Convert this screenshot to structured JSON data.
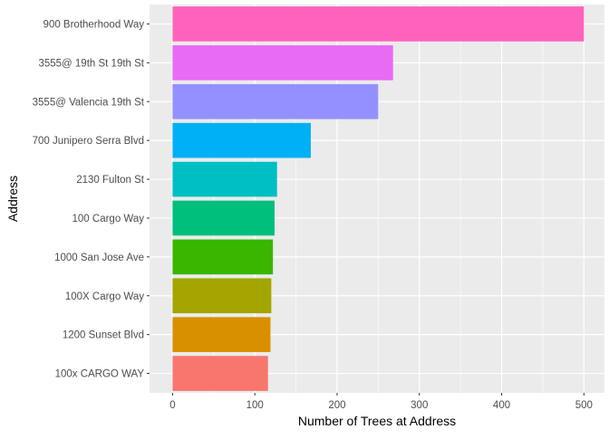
{
  "chart_data": {
    "type": "bar",
    "orientation": "horizontal",
    "title": "",
    "xlabel": "Number of Trees at Address",
    "ylabel": "Address",
    "categories": [
      "100x CARGO WAY",
      "1200 Sunset Blvd",
      "100X Cargo Way",
      "1000 San Jose Ave",
      "100 Cargo Way",
      "2130 Fulton St",
      "700 Junipero Serra Blvd",
      "3555@ Valencia 19th St",
      "3555@ 19th St 19th St",
      "900 Brotherhood Way"
    ],
    "values": [
      116,
      119,
      120,
      122,
      124,
      127,
      168,
      250,
      268,
      500
    ],
    "colors": [
      "#F8766D",
      "#D89000",
      "#A3A500",
      "#39B600",
      "#00BF7D",
      "#00BFC4",
      "#00B0F6",
      "#9590FF",
      "#E76BF3",
      "#FF62BC"
    ],
    "xlim": [
      -28,
      525
    ],
    "xticks": [
      0,
      100,
      200,
      300,
      400,
      500
    ],
    "xtick_labels": [
      "0",
      "100",
      "200",
      "300",
      "400",
      "500"
    ],
    "grid": true,
    "legend": "none",
    "background": "#EBEBEB",
    "gridline_color": "#FFFFFF"
  }
}
